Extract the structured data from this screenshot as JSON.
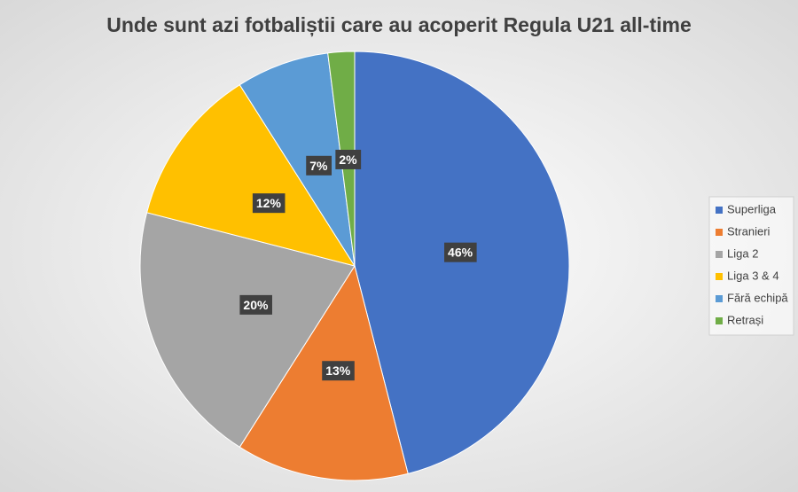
{
  "chart_data": {
    "type": "pie",
    "title": "Unde sunt azi fotbaliștii care au acoperit Regula U21 all-time",
    "categories": [
      "Superliga",
      "Stranieri",
      "Liga 2",
      "Liga 3 & 4",
      "Fără echipă",
      "Retrași"
    ],
    "values": [
      46,
      13,
      20,
      12,
      7,
      2
    ],
    "value_labels": [
      "46%",
      "13%",
      "20%",
      "12%",
      "7%",
      "2%"
    ],
    "colors": [
      "#4472c4",
      "#ed7d31",
      "#a5a5a5",
      "#ffc000",
      "#5b9bd5",
      "#70ad47"
    ],
    "legend": "right"
  }
}
